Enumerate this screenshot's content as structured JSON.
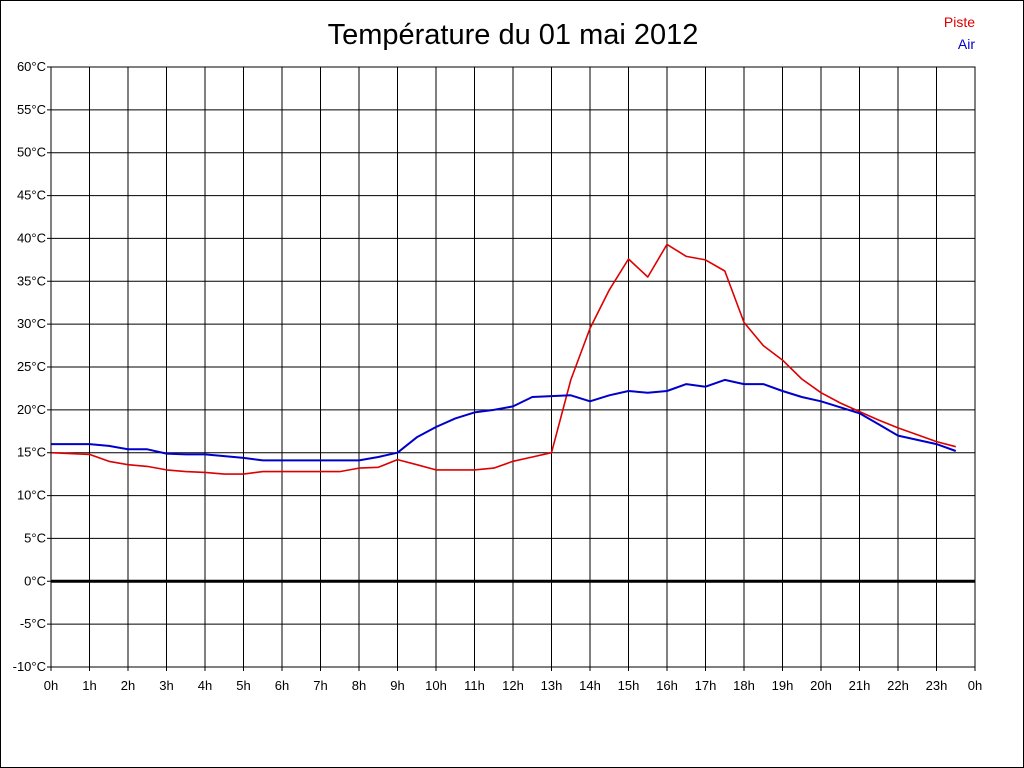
{
  "chart_data": {
    "type": "line",
    "title": "Température du 01 mai 2012",
    "xlabel": "",
    "ylabel": "",
    "x_tick_labels": [
      "0h",
      "1h",
      "2h",
      "3h",
      "4h",
      "5h",
      "6h",
      "7h",
      "8h",
      "9h",
      "10h",
      "11h",
      "12h",
      "13h",
      "14h",
      "15h",
      "16h",
      "17h",
      "18h",
      "19h",
      "20h",
      "21h",
      "22h",
      "23h",
      "0h"
    ],
    "y_tick_labels": [
      "60°C",
      "55°C",
      "50°C",
      "45°C",
      "40°C",
      "35°C",
      "30°C",
      "25°C",
      "20°C",
      "15°C",
      "10°C",
      "5°C",
      "0°C",
      "-5°C",
      "-10°C"
    ],
    "xlim": [
      0,
      24
    ],
    "ylim": [
      -10,
      60
    ],
    "grid": true,
    "legend_position": "top-right",
    "zero_line": true,
    "series": [
      {
        "name": "Piste",
        "color": "#dd0000",
        "x": [
          0,
          1,
          1.5,
          2,
          2.5,
          3,
          3.5,
          4,
          4.5,
          5,
          5.5,
          6,
          6.5,
          7,
          7.5,
          8,
          8.5,
          9,
          9.5,
          10,
          10.5,
          11,
          11.5,
          12,
          12.5,
          13,
          13.5,
          14,
          14.5,
          15,
          15.5,
          16,
          16.5,
          17,
          17.5,
          18,
          18.5,
          19,
          19.5,
          20,
          20.5,
          21,
          21.5,
          22,
          22.5,
          23,
          23.5
        ],
        "values": [
          15,
          14.8,
          14,
          13.6,
          13.4,
          13,
          12.8,
          12.7,
          12.5,
          12.5,
          12.8,
          12.8,
          12.8,
          12.8,
          12.8,
          13.2,
          13.3,
          14.2,
          13.6,
          13,
          13,
          13,
          13.2,
          14,
          14.5,
          15,
          23.5,
          29.5,
          34,
          37.6,
          35.5,
          39.3,
          37.9,
          37.5,
          36.2,
          30.2,
          27.5,
          25.8,
          23.6,
          22,
          20.8,
          19.8,
          18.8,
          17.9,
          17.1,
          16.3,
          15.7
        ]
      },
      {
        "name": "Air",
        "color": "#0000cc",
        "x": [
          0,
          1,
          1.5,
          2,
          2.5,
          3,
          3.5,
          4,
          4.5,
          5,
          5.5,
          6,
          6.5,
          7,
          7.5,
          8,
          8.5,
          9,
          9.5,
          10,
          10.5,
          11,
          11.5,
          12,
          12.5,
          13,
          13.5,
          14,
          14.5,
          15,
          15.5,
          16,
          16.5,
          17,
          17.5,
          18,
          18.5,
          19,
          19.5,
          20,
          20.5,
          21,
          21.5,
          22,
          22.5,
          23,
          23.5
        ],
        "values": [
          16,
          16,
          15.8,
          15.4,
          15.4,
          14.9,
          14.8,
          14.8,
          14.6,
          14.4,
          14.1,
          14.1,
          14.1,
          14.1,
          14.1,
          14.1,
          14.5,
          15,
          16.8,
          18,
          19,
          19.7,
          20,
          20.4,
          21.5,
          21.6,
          21.7,
          21,
          21.7,
          22.2,
          22,
          22.2,
          23,
          22.7,
          23.5,
          23,
          23,
          22.2,
          21.5,
          21,
          20.3,
          19.6,
          18.3,
          17,
          16.5,
          16,
          15.2
        ]
      }
    ]
  }
}
